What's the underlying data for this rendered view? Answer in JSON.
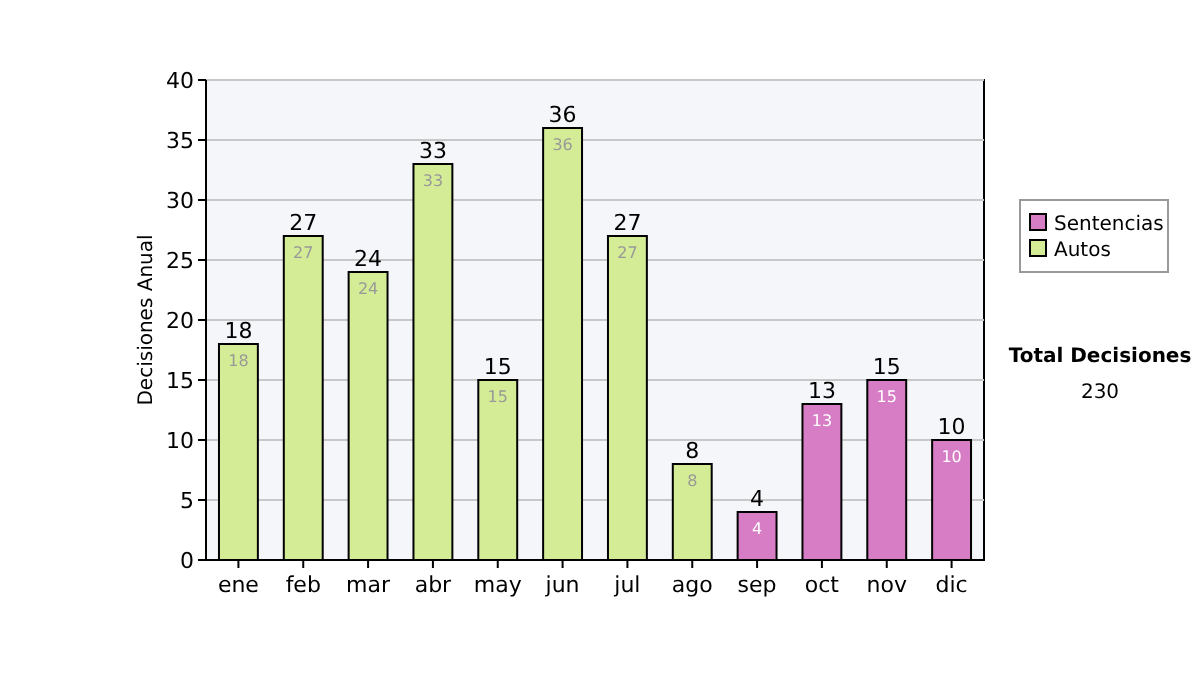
{
  "chart_data": {
    "type": "bar",
    "ylabel": "Decisiones Anual",
    "categories": [
      "ene",
      "feb",
      "mar",
      "abr",
      "may",
      "jun",
      "jul",
      "ago",
      "sep",
      "oct",
      "nov",
      "dic"
    ],
    "series": [
      {
        "name": "Sentencias",
        "color": "#d67dc5",
        "values": [
          null,
          null,
          null,
          null,
          null,
          null,
          null,
          null,
          4,
          13,
          15,
          10
        ],
        "value_labels": [
          null,
          null,
          null,
          null,
          null,
          null,
          null,
          null,
          "4",
          "13",
          "15",
          "10"
        ]
      },
      {
        "name": "Autos",
        "color": "#d4ec96",
        "values": [
          18,
          27,
          24,
          33,
          15,
          36,
          27,
          8,
          null,
          null,
          null,
          null
        ],
        "value_labels": [
          "18",
          "27",
          "24",
          "33",
          "15",
          "36",
          "27",
          "8",
          null,
          null,
          null,
          null
        ]
      }
    ],
    "ylim": [
      0,
      40
    ],
    "yticks": [
      0,
      5,
      10,
      15,
      20,
      25,
      30,
      35,
      40
    ],
    "grid": "y",
    "legend": "right",
    "stacked": true,
    "totals": [
      "18",
      "27",
      "24",
      "33",
      "15",
      "36",
      "27",
      "8",
      "4",
      "13",
      "15",
      "10"
    ],
    "annotations": [
      "Total Decisiones",
      "230"
    ]
  }
}
